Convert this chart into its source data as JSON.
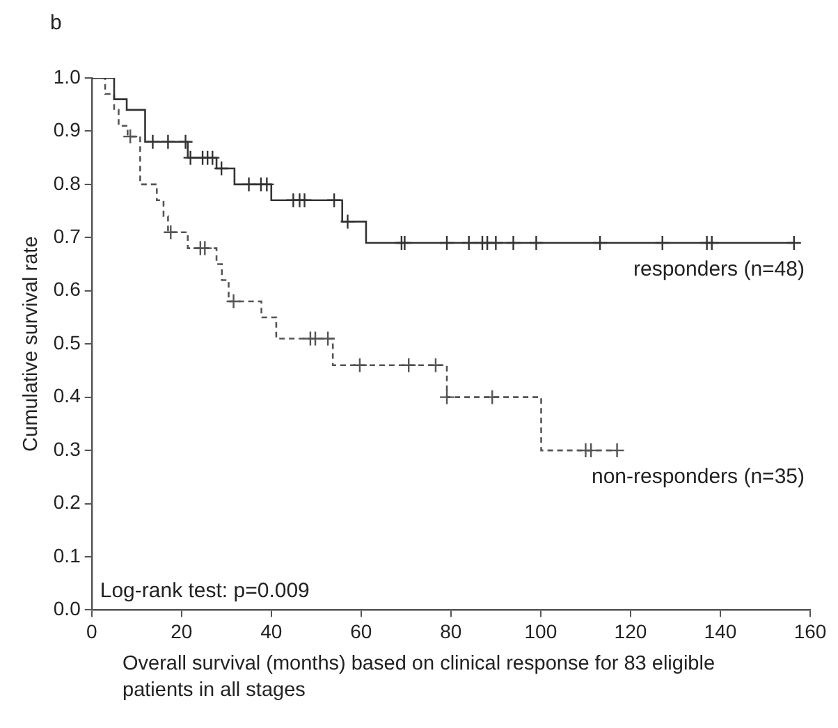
{
  "chart_data": {
    "type": "step",
    "title": "b",
    "xlabel": "Overall survival (months) based on clinical response for 83 eligible patients in all stages",
    "ylabel": "Cumulative survival rate",
    "annotations": [
      "Log-rank test: p=0.009"
    ],
    "xlim": [
      0,
      160
    ],
    "xticks": [
      0,
      20,
      40,
      60,
      80,
      100,
      120,
      140,
      160
    ],
    "ylim": [
      0,
      1
    ],
    "yticks": [
      {
        "value": 0,
        "label": "0.0"
      },
      {
        "value": 0.1,
        "label": "0.1"
      },
      {
        "value": 0.2,
        "label": "0.2"
      },
      {
        "value": 0.3,
        "label": "0.3"
      },
      {
        "value": 0.4,
        "label": "0.4"
      },
      {
        "value": 0.5,
        "label": "0.5"
      },
      {
        "value": 0.6,
        "label": "0.6"
      },
      {
        "value": 0.7,
        "label": "0.7"
      },
      {
        "value": 0.8,
        "label": "0.8"
      },
      {
        "value": 0.9,
        "label": "0.9"
      },
      {
        "value": 1,
        "label": "1.0"
      }
    ],
    "grid": false,
    "legend": false,
    "series": [
      {
        "name": "responders (n=48)",
        "line_style": "solid",
        "color": "#333333",
        "x": [
          0,
          5,
          7.8,
          11.9,
          21.4,
          27.8,
          31.8,
          40,
          55.8,
          61.1,
          156.4
        ],
        "values": [
          1,
          0.96,
          0.94,
          0.88,
          0.85,
          0.83,
          0.8,
          0.77,
          0.73,
          0.69,
          0.69
        ]
      },
      {
        "name": "non-responders (n=35)",
        "line_style": "dashed",
        "color": "#555555",
        "x": [
          0,
          3,
          5,
          6,
          8,
          10.8,
          14.5,
          16,
          17,
          21.4,
          27.8,
          29,
          30.5,
          37.8,
          41.1,
          53.7,
          79.1,
          100.1,
          117
        ],
        "values": [
          1,
          0.97,
          0.94,
          0.91,
          0.89,
          0.8,
          0.77,
          0.74,
          0.71,
          0.68,
          0.65,
          0.62,
          0.58,
          0.55,
          0.51,
          0.46,
          0.4,
          0.3,
          0.3
        ]
      },
      {
        "type": "scatter",
        "marker": "cross",
        "color": "#333333",
        "x": [
          13.6,
          17,
          20.9,
          22,
          24.7,
          25.8,
          26.9,
          28.9,
          35,
          37.7,
          39,
          44.9,
          46.3,
          47.4,
          54,
          57,
          69,
          69.7,
          79.1,
          84,
          87,
          88.1,
          90,
          93.9,
          99,
          113.2,
          127.1,
          137,
          138.1,
          156.4
        ],
        "values": [
          0.88,
          0.88,
          0.88,
          0.85,
          0.85,
          0.85,
          0.85,
          0.83,
          0.8,
          0.8,
          0.8,
          0.77,
          0.77,
          0.77,
          0.77,
          0.73,
          0.69,
          0.69,
          0.69,
          0.69,
          0.69,
          0.69,
          0.69,
          0.69,
          0.69,
          0.69,
          0.69,
          0.69,
          0.69,
          0.69
        ]
      },
      {
        "type": "scatter",
        "marker": "cross",
        "color": "#555555",
        "x": [
          8.6,
          17.6,
          24.2,
          25.2,
          31.6,
          48.7,
          49.8,
          52.6,
          59.7,
          70.6,
          76.6,
          79.1,
          89.2,
          110,
          111.2,
          117
        ],
        "values": [
          0.89,
          0.71,
          0.68,
          0.68,
          0.58,
          0.51,
          0.51,
          0.51,
          0.46,
          0.46,
          0.46,
          0.4,
          0.4,
          0.3,
          0.3,
          0.3
        ]
      }
    ]
  }
}
